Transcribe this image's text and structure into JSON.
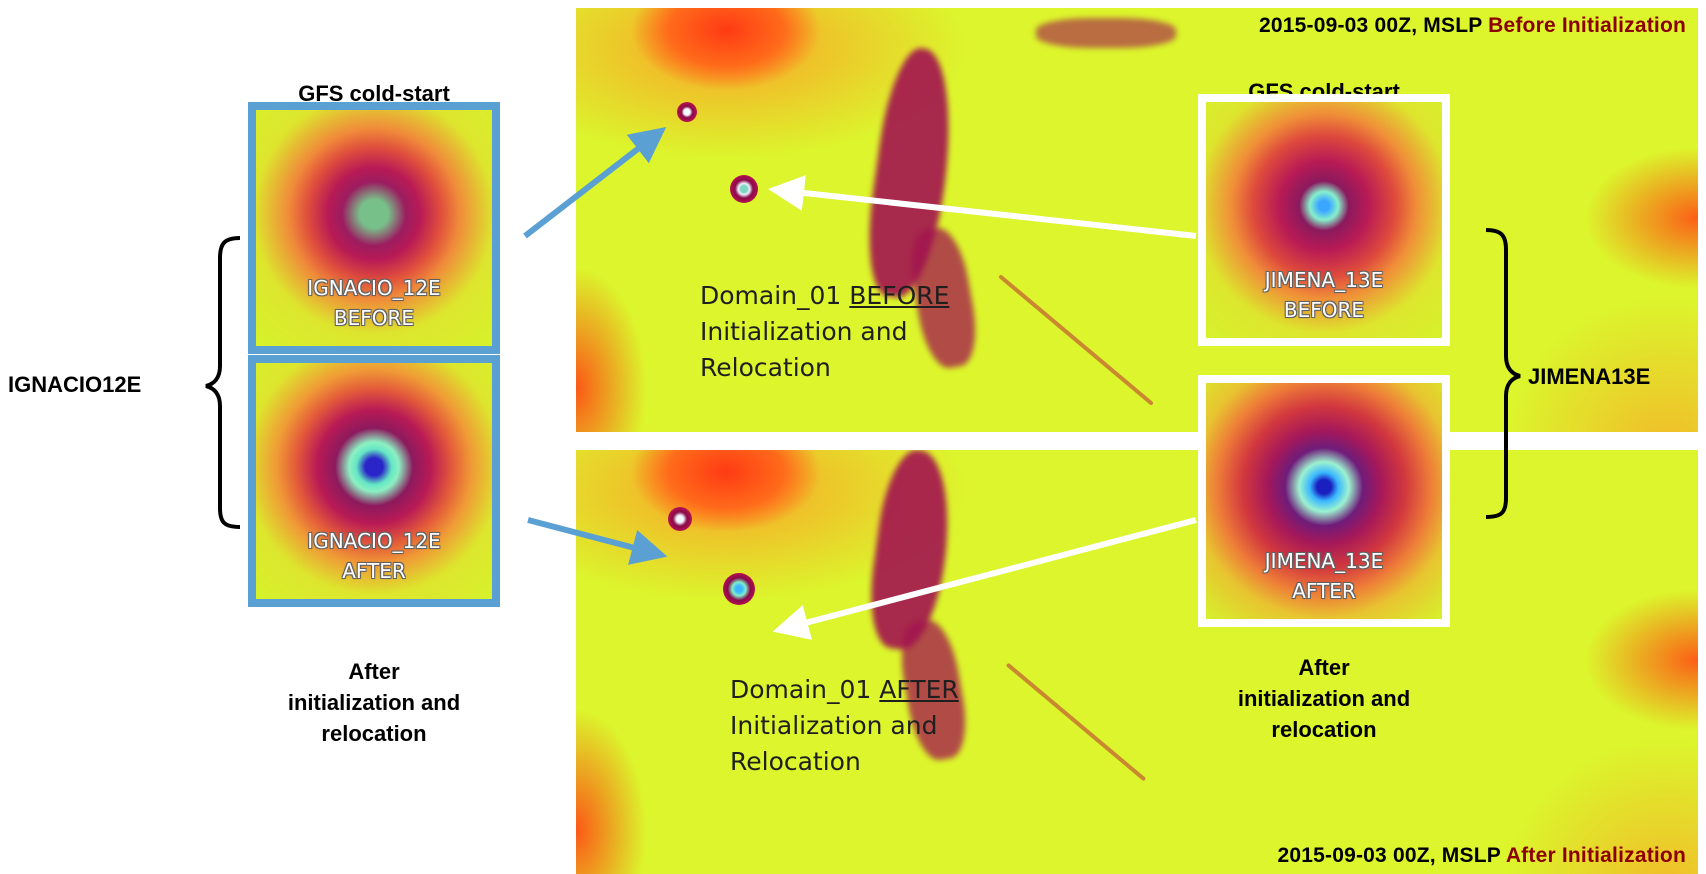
{
  "panels": {
    "top_title_black": "2015-09-03 00Z, MSLP ",
    "top_title_red": "Before Initialization",
    "bottom_title_black": "2015-09-03 00Z, MSLP ",
    "bottom_title_red": "After Initialization",
    "before_label": {
      "line1_prefix": "Domain_01 ",
      "line1_underlined": "BEFORE",
      "line2": "Initialization and",
      "line3": "Relocation"
    },
    "after_label": {
      "line1_prefix": "Domain_01 ",
      "line1_underlined": "AFTER",
      "line2": "Initialization and",
      "line3": "Relocation"
    }
  },
  "insets": {
    "ignacio_before": {
      "header": "GFS cold-start",
      "name": "IGNACIO_12E",
      "state": "BEFORE"
    },
    "ignacio_after": {
      "name": "IGNACIO_12E",
      "state": "AFTER"
    },
    "jimena_before": {
      "header": "GFS cold-start",
      "name": "JIMENA_13E",
      "state": "BEFORE"
    },
    "jimena_after": {
      "name": "JIMENA_13E",
      "state": "AFTER"
    }
  },
  "captions": {
    "left_after": [
      "After",
      "initialization and",
      "relocation"
    ],
    "right_after": [
      "After",
      "initialization and",
      "relocation"
    ]
  },
  "storms": {
    "left": "IGNACIO12E",
    "right": "JIMENA13E"
  },
  "colors": {
    "ignacio_frame": "#5aa0d2",
    "jimena_frame": "#ffffff",
    "title_red": "#8b0000",
    "map_base": "#dcf52c"
  }
}
